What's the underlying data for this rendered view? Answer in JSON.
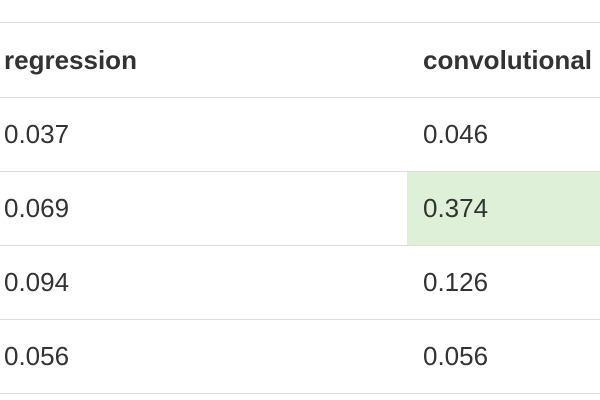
{
  "table": {
    "columns": [
      "regression",
      "convolutional"
    ],
    "rows": [
      [
        "0.037",
        "0.046"
      ],
      [
        "0.069",
        "0.374"
      ],
      [
        "0.094",
        "0.126"
      ],
      [
        "0.056",
        "0.056"
      ]
    ],
    "highlight_color": "#dff0d8"
  }
}
